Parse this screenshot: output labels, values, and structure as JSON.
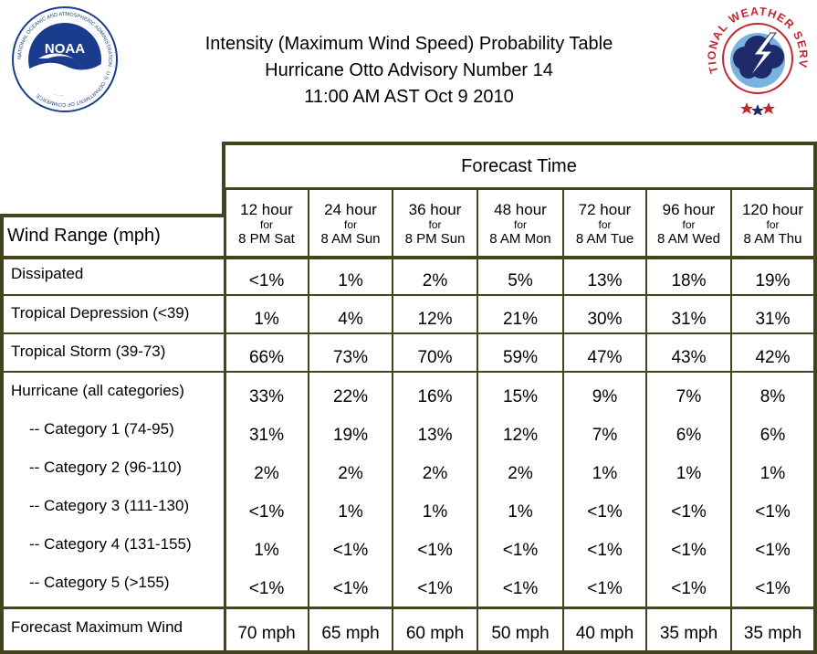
{
  "header": {
    "title_lines": [
      "Intensity (Maximum Wind Speed) Probability Table",
      "Hurricane Otto Advisory Number 14",
      "11:00 AM AST Oct 9 2010"
    ],
    "noaa_logo_text": "NOAA",
    "noaa_ring_text": "NATIONAL OCEANIC AND ATMOSPHERIC ADMINISTRATION · U.S. DEPARTMENT OF COMMERCE",
    "nws_ring_text": "NATIONAL WEATHER SERVICE"
  },
  "colors": {
    "border": "#44441e",
    "noaa_blue": "#1b3c8c",
    "nws_red": "#c4262e",
    "nws_navy": "#1f2a6b"
  },
  "table": {
    "forecast_time_label": "Forecast Time",
    "wind_range_label": "Wind Range (mph)",
    "columns": [
      {
        "hours": "12 hour",
        "for": "for",
        "when": "8 PM Sat"
      },
      {
        "hours": "24 hour",
        "for": "for",
        "when": "8 AM Sun"
      },
      {
        "hours": "36 hour",
        "for": "for",
        "when": "8 PM Sun"
      },
      {
        "hours": "48 hour",
        "for": "for",
        "when": "8 AM Mon"
      },
      {
        "hours": "72 hour",
        "for": "for",
        "when": "8 AM Tue"
      },
      {
        "hours": "96 hour",
        "for": "for",
        "when": "8 AM Wed"
      },
      {
        "hours": "120 hour",
        "for": "for",
        "when": "8 AM Thu"
      }
    ],
    "rows": [
      {
        "label": "Dissipated",
        "values": [
          "<1%",
          "1%",
          "2%",
          "5%",
          "13%",
          "18%",
          "19%"
        ]
      },
      {
        "label": "Tropical Depression (<39)",
        "values": [
          "1%",
          "4%",
          "12%",
          "21%",
          "30%",
          "31%",
          "31%"
        ]
      },
      {
        "label": "Tropical Storm (39-73)",
        "values": [
          "66%",
          "73%",
          "70%",
          "59%",
          "47%",
          "43%",
          "42%"
        ]
      },
      {
        "label": "Hurricane (all categories)",
        "values": [
          "33%",
          "22%",
          "16%",
          "15%",
          "9%",
          "7%",
          "8%"
        ]
      },
      {
        "label": "-- Category 1 (74-95)",
        "values": [
          "31%",
          "19%",
          "13%",
          "12%",
          "7%",
          "6%",
          "6%"
        ]
      },
      {
        "label": "-- Category 2 (96-110)",
        "values": [
          "2%",
          "2%",
          "2%",
          "2%",
          "1%",
          "1%",
          "1%"
        ]
      },
      {
        "label": "-- Category 3 (111-130)",
        "values": [
          "<1%",
          "1%",
          "1%",
          "1%",
          "<1%",
          "<1%",
          "<1%"
        ]
      },
      {
        "label": "-- Category 4 (131-155)",
        "values": [
          "1%",
          "<1%",
          "<1%",
          "<1%",
          "<1%",
          "<1%",
          "<1%"
        ]
      },
      {
        "label": "-- Category 5 (>155)",
        "values": [
          "<1%",
          "<1%",
          "<1%",
          "<1%",
          "<1%",
          "<1%",
          "<1%"
        ]
      }
    ],
    "max_wind": {
      "label": "Forecast Maximum Wind",
      "values": [
        "70 mph",
        "65 mph",
        "60 mph",
        "50 mph",
        "40 mph",
        "35 mph",
        "35 mph"
      ]
    }
  }
}
